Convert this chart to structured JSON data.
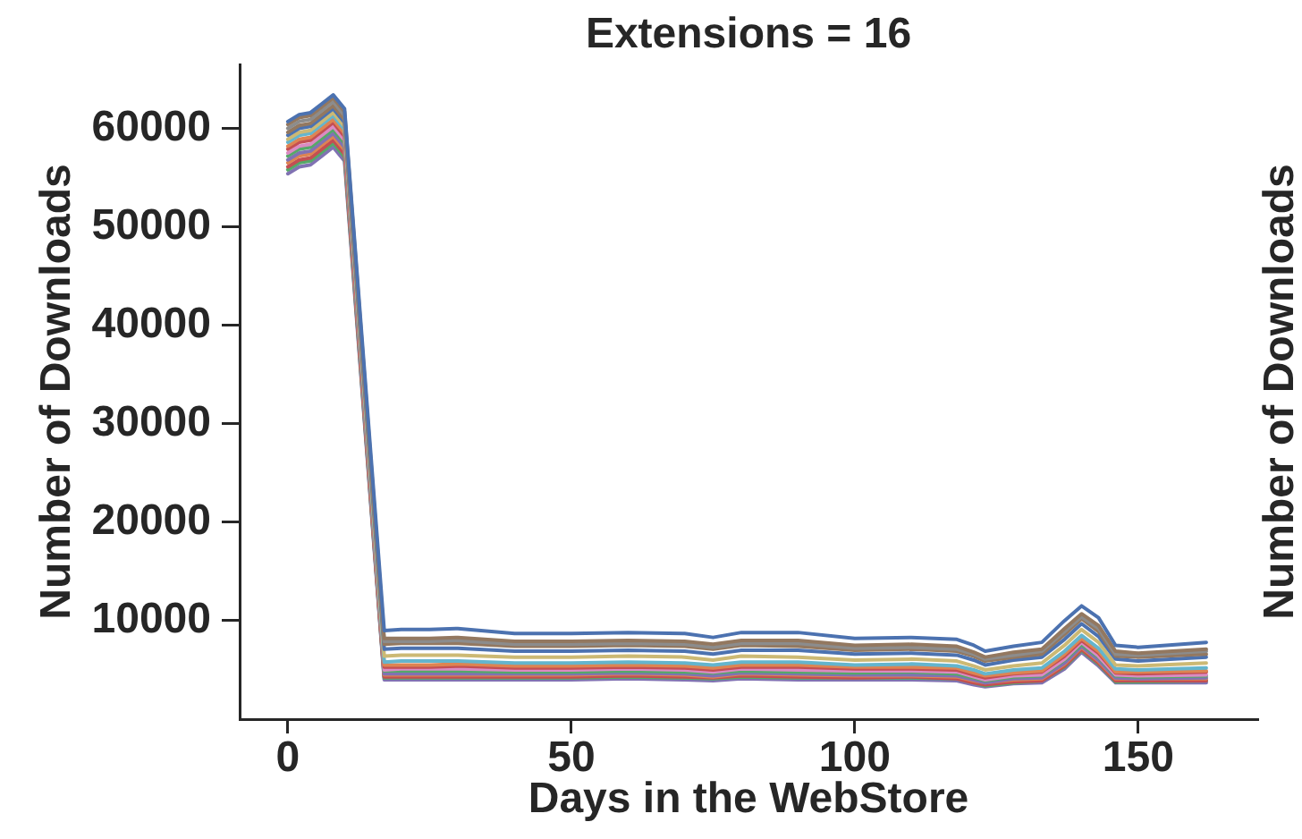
{
  "chart_data": {
    "type": "line",
    "title": "Extensions = 16",
    "xlabel": "Days in the WebStore",
    "ylabel": "Number of Downloads",
    "annotations": [
      "Number of Downloads"
    ],
    "x": [
      0,
      2,
      4,
      6,
      8,
      10,
      17,
      20,
      25,
      30,
      40,
      50,
      60,
      70,
      75,
      80,
      90,
      100,
      110,
      118,
      121,
      123,
      128,
      133,
      137,
      140,
      143,
      146,
      150,
      162
    ],
    "xlim": [
      -8.5,
      171
    ],
    "xticks": [
      0,
      50,
      100,
      150
    ],
    "ylim": [
      0,
      66500
    ],
    "yticks": [
      10000,
      20000,
      30000,
      40000,
      50000,
      60000
    ],
    "marker": "none",
    "series": [
      {
        "color": "#4c72b0",
        "values": [
          60700,
          61400,
          61600,
          62500,
          63400,
          62000,
          9000,
          9100,
          9100,
          9200,
          8700,
          8700,
          8800,
          8700,
          8300,
          8800,
          8800,
          8200,
          8300,
          8100,
          7500,
          6900,
          7400,
          7800,
          10000,
          11500,
          10300,
          7500,
          7300,
          7800
        ]
      },
      {
        "color": "#937860",
        "values": [
          60400,
          61100,
          61300,
          62200,
          63100,
          61700,
          8200,
          8200,
          8200,
          8300,
          7900,
          7900,
          8000,
          7900,
          7600,
          8000,
          8000,
          7500,
          7600,
          7400,
          6800,
          6300,
          6800,
          7100,
          9200,
          10700,
          9500,
          6900,
          6700,
          7100
        ]
      },
      {
        "color": "#8c8c8c",
        "values": [
          60000,
          60700,
          60900,
          61800,
          62700,
          61300,
          7900,
          7900,
          7900,
          8000,
          7600,
          7600,
          7700,
          7600,
          7300,
          7700,
          7700,
          7200,
          7300,
          7100,
          6600,
          6100,
          6500,
          6900,
          8900,
          10400,
          9200,
          6600,
          6500,
          6900
        ]
      },
      {
        "color": "#937860",
        "values": [
          59600,
          60300,
          60500,
          61400,
          62300,
          60900,
          7600,
          7700,
          7700,
          7700,
          7400,
          7400,
          7500,
          7400,
          7100,
          7500,
          7400,
          7000,
          7100,
          6900,
          6400,
          5900,
          6300,
          6600,
          8600,
          10200,
          8900,
          6400,
          6300,
          6600
        ]
      },
      {
        "color": "#4c72b0",
        "values": [
          59300,
          60000,
          60200,
          61100,
          62000,
          60600,
          7100,
          7200,
          7200,
          7200,
          6900,
          6900,
          7000,
          6900,
          6600,
          7000,
          7000,
          6600,
          6700,
          6500,
          6000,
          5500,
          6000,
          6300,
          8100,
          9700,
          8400,
          6100,
          5900,
          6300
        ]
      },
      {
        "color": "#ccb974",
        "values": [
          58900,
          59600,
          59800,
          60700,
          61600,
          60200,
          6400,
          6500,
          6500,
          6500,
          6300,
          6300,
          6400,
          6300,
          6000,
          6400,
          6300,
          6000,
          6100,
          5900,
          5400,
          5000,
          5400,
          5700,
          7500,
          9100,
          7800,
          5500,
          5400,
          5700
        ]
      },
      {
        "color": "#64b5cd",
        "values": [
          58600,
          59300,
          59500,
          60400,
          61300,
          59900,
          5800,
          5900,
          5900,
          5900,
          5700,
          5700,
          5800,
          5700,
          5500,
          5800,
          5800,
          5500,
          5600,
          5400,
          5000,
          4600,
          5000,
          5200,
          6900,
          8500,
          7200,
          5100,
          5000,
          5200
        ]
      },
      {
        "color": "#dd8452",
        "values": [
          58200,
          58900,
          59100,
          60000,
          60900,
          59500,
          5500,
          5500,
          5500,
          5600,
          5400,
          5400,
          5500,
          5400,
          5200,
          5500,
          5500,
          5300,
          5300,
          5200,
          4700,
          4400,
          4700,
          4900,
          6600,
          8200,
          6900,
          4800,
          4800,
          4900
        ]
      },
      {
        "color": "#c44e52",
        "values": [
          57900,
          58600,
          58800,
          59700,
          60600,
          59200,
          5300,
          5300,
          5300,
          5400,
          5200,
          5200,
          5300,
          5200,
          5000,
          5300,
          5300,
          5100,
          5100,
          5000,
          4500,
          4200,
          4600,
          4800,
          6400,
          8000,
          6700,
          4700,
          4600,
          4800
        ]
      },
      {
        "color": "#da8bc3",
        "values": [
          57500,
          58200,
          58400,
          59300,
          60200,
          58800,
          5000,
          5100,
          5100,
          5100,
          5000,
          5000,
          5100,
          5000,
          4800,
          5100,
          5000,
          4900,
          4900,
          4800,
          4300,
          4000,
          4400,
          4500,
          6100,
          7800,
          6400,
          4500,
          4400,
          4500
        ]
      },
      {
        "color": "#55a868",
        "values": [
          57200,
          57900,
          58100,
          59000,
          59900,
          58500,
          4900,
          4900,
          4900,
          4900,
          4800,
          4800,
          4900,
          4800,
          4700,
          4900,
          4800,
          4700,
          4800,
          4600,
          4200,
          3900,
          4300,
          4400,
          6000,
          7600,
          6300,
          4400,
          4300,
          4400
        ]
      },
      {
        "color": "#8172b3",
        "values": [
          56800,
          57500,
          57700,
          58600,
          59500,
          58100,
          4600,
          4600,
          4600,
          4600,
          4600,
          4600,
          4700,
          4600,
          4400,
          4700,
          4600,
          4500,
          4500,
          4400,
          4000,
          3700,
          4100,
          4200,
          5700,
          7400,
          6000,
          4200,
          4100,
          4200
        ]
      },
      {
        "color": "#dd8452",
        "values": [
          56500,
          57200,
          57400,
          58300,
          59200,
          57800,
          4500,
          4500,
          4500,
          4500,
          4500,
          4500,
          4600,
          4500,
          4300,
          4600,
          4500,
          4400,
          4400,
          4300,
          3900,
          3700,
          4000,
          4100,
          5600,
          7300,
          5900,
          4100,
          4100,
          4100
        ]
      },
      {
        "color": "#c44e52",
        "values": [
          56100,
          56800,
          57000,
          57900,
          58800,
          57400,
          4300,
          4300,
          4300,
          4300,
          4300,
          4300,
          4400,
          4300,
          4200,
          4400,
          4300,
          4200,
          4300,
          4100,
          3700,
          3500,
          3800,
          3900,
          5400,
          7100,
          5700,
          3900,
          3900,
          3900
        ]
      },
      {
        "color": "#55a868",
        "values": [
          55800,
          56500,
          56700,
          57600,
          58500,
          57100,
          4200,
          4200,
          4200,
          4200,
          4200,
          4200,
          4300,
          4200,
          4100,
          4300,
          4200,
          4200,
          4200,
          4100,
          3700,
          3400,
          3700,
          3900,
          5300,
          7000,
          5600,
          3800,
          3800,
          3900
        ]
      },
      {
        "color": "#8172b3",
        "values": [
          55400,
          56100,
          56300,
          57200,
          58100,
          56700,
          4000,
          4000,
          4000,
          4000,
          4000,
          4000,
          4100,
          4000,
          3900,
          4100,
          4000,
          4000,
          4000,
          3900,
          3500,
          3300,
          3600,
          3700,
          5100,
          6800,
          5400,
          3700,
          3700,
          3700
        ]
      }
    ]
  }
}
